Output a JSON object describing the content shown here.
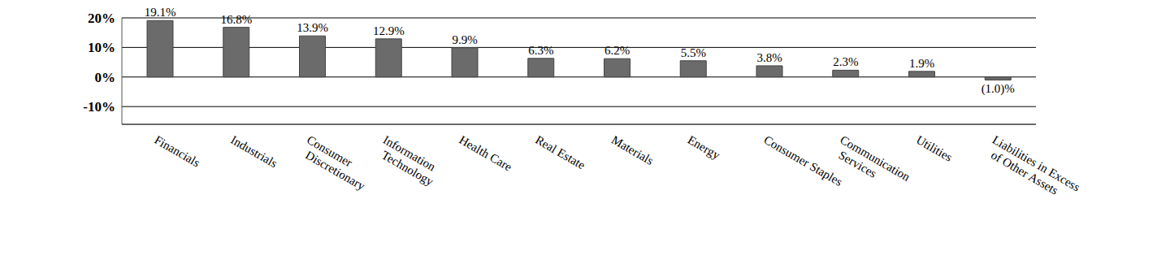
{
  "chart_data": {
    "type": "bar",
    "categories": [
      "Financials",
      "Industrials",
      "Consumer Discretionary",
      "Information Technology",
      "Health Care",
      "Real Estate",
      "Materials",
      "Energy",
      "Consumer Staples",
      "Communication Services",
      "Utilities",
      "Liabilities in Excess of Other Assets"
    ],
    "values": [
      19.1,
      16.8,
      13.9,
      12.9,
      9.9,
      6.3,
      6.2,
      5.5,
      3.8,
      2.3,
      1.9,
      -1.0
    ],
    "value_labels": [
      "19.1%",
      "16.8%",
      "13.9%",
      "12.9%",
      "9.9%",
      "6.3%",
      "6.2%",
      "5.5%",
      "3.8%",
      "2.3%",
      "1.9%",
      "(1.0)%"
    ],
    "color": "#6b6b6b",
    "ylim": [
      -16,
      20
    ],
    "yticks": [
      {
        "value": -10,
        "label": "-10%"
      },
      {
        "value": 0,
        "label": "0%"
      },
      {
        "value": 10,
        "label": "10%"
      },
      {
        "value": 20,
        "label": "20%"
      }
    ],
    "grid": true,
    "data_labels": true
  }
}
